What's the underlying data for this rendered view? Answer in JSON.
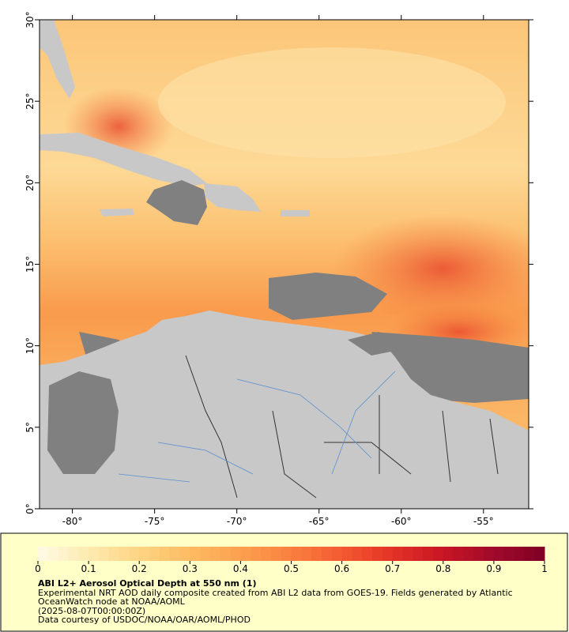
{
  "map": {
    "xlim": [
      -82,
      -52.25
    ],
    "ylim": [
      0,
      30
    ],
    "xticks": [
      {
        "value": -80,
        "label": "-80°"
      },
      {
        "value": -75,
        "label": "-75°"
      },
      {
        "value": -70,
        "label": "-70°"
      },
      {
        "value": -65,
        "label": "-65°"
      },
      {
        "value": -60,
        "label": "-60°"
      },
      {
        "value": -55,
        "label": "-55°"
      }
    ],
    "yticks": [
      {
        "value": 0,
        "label": "0°"
      },
      {
        "value": 5,
        "label": "5°"
      },
      {
        "value": 10,
        "label": "10°"
      },
      {
        "value": 15,
        "label": "15°"
      },
      {
        "value": 20,
        "label": "20°"
      },
      {
        "value": 25,
        "label": "25°"
      },
      {
        "value": 30,
        "label": "30°"
      }
    ]
  },
  "colorbar": {
    "lim": [
      0,
      1
    ],
    "ticks": [
      0,
      0.1,
      0.2,
      0.3,
      0.4,
      0.5,
      0.6,
      0.7,
      0.8,
      0.9,
      1
    ],
    "colors": [
      "#fffbe6",
      "#feeab0",
      "#fed483",
      "#fdbb62",
      "#fca04f",
      "#fa803f",
      "#f45a31",
      "#e33226",
      "#c81525",
      "#a00a2a",
      "#7f0026"
    ]
  },
  "title": "ABI L2+ Aerosol Optical Depth at 550 nm (1)",
  "caption": [
    "Experimental NRT AOD daily composite created from ABI L2 data from GOES-19. Fields generated by Atlantic OceanWatch node at NOAA/AOML",
    "(2025-08-07T00:00:00Z)",
    "Data courtesy of USDOC/NOAA/OAR/AOML/PHOD"
  ]
}
